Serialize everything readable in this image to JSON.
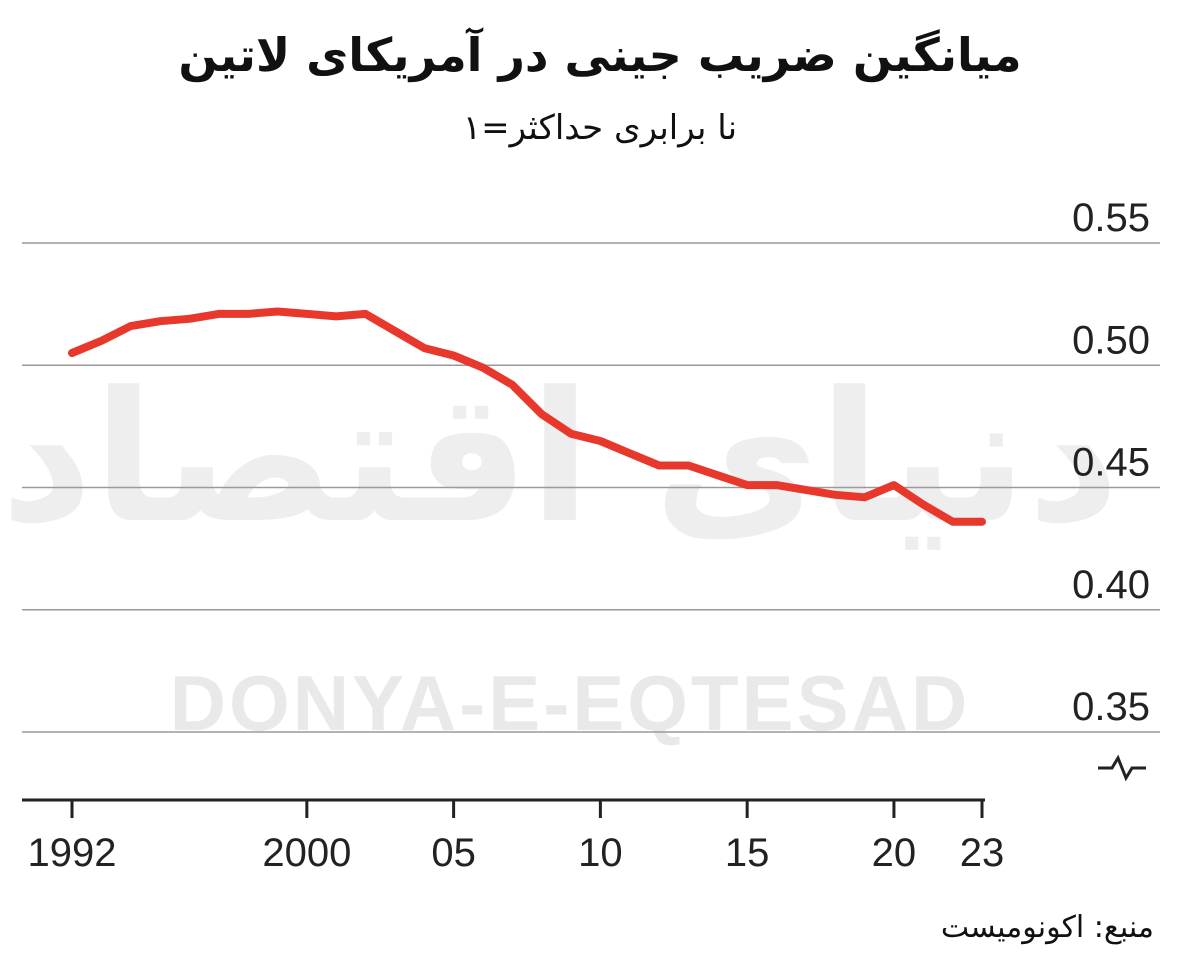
{
  "title": "میانگین ضریب جینی در آمریکای لاتین",
  "subtitle": "نا برابری حداکثر=۱",
  "source": "منبع: اکونومیست",
  "watermark": {
    "latin": "DONYA-E-EQTESAD",
    "persian": "دنیای اقتصاد"
  },
  "line_color": "#e8382c",
  "chart_data": {
    "type": "line",
    "title": "میانگین ضریب جینی در آمریکای لاتین",
    "subtitle": "نا برابری حداکثر=۱",
    "ylim": [
      0.35,
      0.55
    ],
    "yticks": [
      "0.55",
      "0.50",
      "0.45",
      "0.40",
      "0.35"
    ],
    "ytick_values": [
      0.55,
      0.5,
      0.45,
      0.4,
      0.35
    ],
    "xlim": [
      1992,
      2023
    ],
    "xticks": [
      "1992",
      "2000",
      "05",
      "10",
      "15",
      "20",
      "23"
    ],
    "xtick_values": [
      1992,
      2000,
      2005,
      2010,
      2015,
      2020,
      2023
    ],
    "axis_break": true,
    "grid": true,
    "series": [
      {
        "x": [
          1992,
          1993,
          1994,
          1995,
          1996,
          1997,
          1998,
          1999,
          2000,
          2001,
          2002,
          2003,
          2004,
          2005,
          2006,
          2007,
          2008,
          2009,
          2010,
          2011,
          2012,
          2013,
          2014,
          2015,
          2016,
          2017,
          2018,
          2019,
          2020,
          2021,
          2022,
          2023
        ],
        "values": [
          0.505,
          0.51,
          0.516,
          0.518,
          0.519,
          0.521,
          0.521,
          0.522,
          0.521,
          0.52,
          0.521,
          0.514,
          0.507,
          0.504,
          0.499,
          0.492,
          0.48,
          0.472,
          0.469,
          0.464,
          0.459,
          0.459,
          0.455,
          0.451,
          0.451,
          0.449,
          0.447,
          0.446,
          0.451,
          0.443,
          0.436,
          0.436
        ]
      }
    ]
  }
}
